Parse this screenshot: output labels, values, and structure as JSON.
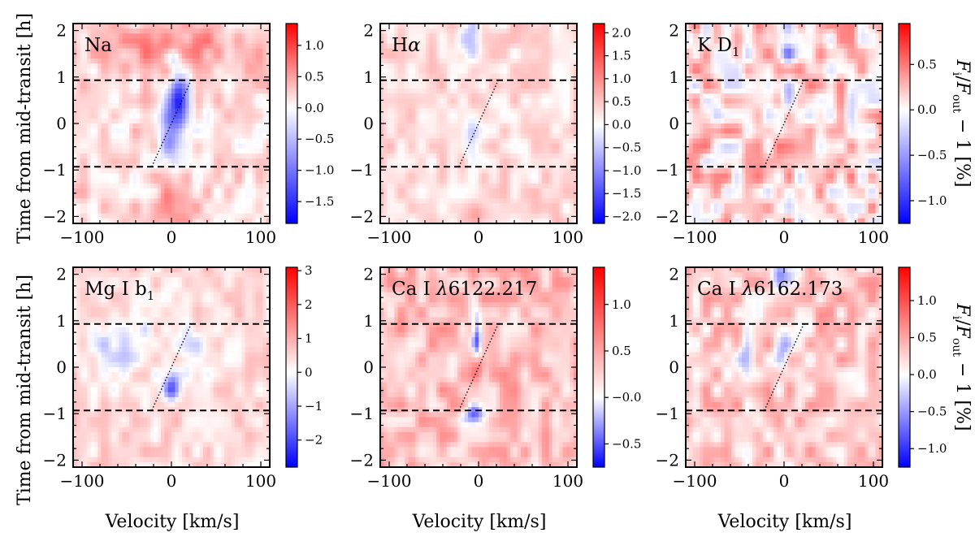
{
  "chart_data": {
    "type": "heatmap",
    "x_label": "Velocity [km/s]",
    "y_label": "Time from mid-transit [h]",
    "colorbar_label": "F_i/F_out − 1 [%]",
    "colorbar_label_parts": {
      "f_i": "F",
      "sub_i": "i",
      "slash": "/",
      "f_out": "F",
      "sub_out": "out",
      "rest": " − 1 [%]"
    },
    "x_range": [
      -110,
      110
    ],
    "y_range": [
      -2.15,
      2.15
    ],
    "x_ticks": [
      -100,
      0,
      100
    ],
    "x_tick_labels": [
      "−100",
      "0",
      "100"
    ],
    "y_ticks": [
      -2,
      -1,
      0,
      1,
      2
    ],
    "y_tick_labels": [
      "−2",
      "−1",
      "0",
      "1",
      "2"
    ],
    "transit_contacts_h": [
      -0.93,
      0.93
    ],
    "planet_trace": {
      "v_start": -22,
      "t_start": -0.93,
      "v_end": 22,
      "t_end": 0.93
    },
    "colormap": {
      "negative": "#0000ff",
      "zero": "#ffffff",
      "positive": "#ff0000"
    },
    "panels": [
      {
        "label": "Na",
        "vmin": -1.85,
        "vmax": 1.35,
        "cb_ticks": [
          1.0,
          0.5,
          0.0,
          -0.5,
          -1.0,
          -1.5
        ],
        "cb_tick_labels": [
          "1.0",
          "0.5",
          "0.0",
          "−0.5",
          "−1.0",
          "−1.5"
        ],
        "noise_seed": 11,
        "noise_amp": 0.28,
        "bias": 0.18,
        "features": [
          {
            "v": 0,
            "t": 1.6,
            "sv": 55,
            "st": 0.35,
            "a": 0.5
          },
          {
            "v": 0,
            "t": -1.8,
            "sv": 15,
            "st": 0.3,
            "a": 0.45
          },
          {
            "v": 0,
            "t": 1.4,
            "sv": 7,
            "st": 0.15,
            "a": -0.7
          },
          {
            "v": 9,
            "t": 0.7,
            "sv": 7,
            "st": 0.25,
            "a": -0.7
          },
          {
            "v": 9,
            "t": 0.25,
            "sv": 9,
            "st": 0.35,
            "a": -1.4
          },
          {
            "v": -3,
            "t": -0.3,
            "sv": 8,
            "st": 0.4,
            "a": -0.9
          }
        ]
      },
      {
        "label": "Hα",
        "label_parts": [
          "H",
          "α"
        ],
        "vmin": -2.15,
        "vmax": 2.2,
        "cb_ticks": [
          2.0,
          1.5,
          1.0,
          0.5,
          0.0,
          -0.5,
          -1.0,
          -1.5,
          -2.0
        ],
        "cb_tick_labels": [
          "2.0",
          "1.5",
          "1.0",
          "0.5",
          "0.0",
          "−0.5",
          "−1.0",
          "−1.5",
          "−2.0"
        ],
        "noise_seed": 23,
        "noise_amp": 0.35,
        "bias": 0.3,
        "features": [
          {
            "v": -10,
            "t": 1.8,
            "sv": 10,
            "st": 0.3,
            "a": -0.8
          },
          {
            "v": -8,
            "t": -0.35,
            "sv": 7,
            "st": 0.4,
            "a": -0.6
          },
          {
            "v": 0,
            "t": -2.0,
            "sv": 10,
            "st": 0.2,
            "a": 0.6
          }
        ]
      },
      {
        "label": "K D1",
        "label_parts": [
          "K D",
          "1"
        ],
        "vmin": -1.25,
        "vmax": 0.95,
        "cb_ticks": [
          0.5,
          0.0,
          -0.5,
          -1.0
        ],
        "cb_tick_labels": [
          "0.5",
          "0.0",
          "−0.5",
          "−1.0"
        ],
        "noise_seed": 37,
        "noise_amp": 0.38,
        "bias": 0.15,
        "features": [
          {
            "v": 5,
            "t": 2.0,
            "sv": 6,
            "st": 0.3,
            "a": -0.6
          },
          {
            "v": 0,
            "t": 1.5,
            "sv": 8,
            "st": 0.15,
            "a": -0.5
          },
          {
            "v": 5,
            "t": 0.55,
            "sv": 6,
            "st": 0.2,
            "a": -0.45
          }
        ]
      },
      {
        "label": "Mg I b1",
        "label_parts": [
          "Mg I b",
          "1"
        ],
        "vmin": -2.8,
        "vmax": 3.1,
        "cb_ticks": [
          3,
          2,
          1,
          0,
          -1,
          -2
        ],
        "cb_tick_labels": [
          "3",
          "2",
          "1",
          "0",
          "−1",
          "−2"
        ],
        "noise_seed": 41,
        "noise_amp": 0.5,
        "bias": 0.45,
        "features": [
          {
            "v": -55,
            "t": 0.5,
            "sv": 25,
            "st": 0.45,
            "a": -1.0
          },
          {
            "v": 0,
            "t": -0.45,
            "sv": 6,
            "st": 0.2,
            "a": -2.0
          },
          {
            "v": 30,
            "t": 0.4,
            "sv": 15,
            "st": 0.35,
            "a": -0.8
          }
        ]
      },
      {
        "label": "Ca I λ6122.217",
        "label_parts": [
          "Ca I ",
          "λ",
          "6122.217"
        ],
        "vmin": -0.75,
        "vmax": 1.4,
        "cb_ticks": [
          1.0,
          0.5,
          0.0,
          -0.5
        ],
        "cb_tick_labels": [
          "1.0",
          "0.5",
          "−0.0",
          "−0.5"
        ],
        "noise_seed": 53,
        "noise_amp": 0.3,
        "bias": 0.35,
        "features": [
          {
            "v": -2,
            "t": 0.6,
            "sv": 4,
            "st": 0.35,
            "a": -0.8
          },
          {
            "v": -5,
            "t": -1.0,
            "sv": 9,
            "st": 0.15,
            "a": -0.6
          },
          {
            "v": 0,
            "t": 0.0,
            "sv": 5,
            "st": 0.2,
            "a": 0.5
          }
        ]
      },
      {
        "label": "Ca I λ6162.173",
        "label_parts": [
          "Ca I ",
          "λ",
          "6162.173"
        ],
        "vmin": -1.25,
        "vmax": 1.45,
        "cb_ticks": [
          1.0,
          0.5,
          0.0,
          -0.5,
          -1.0
        ],
        "cb_tick_labels": [
          "1.0",
          "0.5",
          "0.0",
          "−0.5",
          "−1.0"
        ],
        "noise_seed": 67,
        "noise_amp": 0.35,
        "bias": 0.3,
        "features": [
          {
            "v": 0,
            "t": 2.0,
            "sv": 12,
            "st": 0.2,
            "a": -0.6
          },
          {
            "v": 0,
            "t": 0.4,
            "sv": 6,
            "st": 0.3,
            "a": -0.5
          },
          {
            "v": -45,
            "t": 0.2,
            "sv": 8,
            "st": 0.3,
            "a": -0.5
          }
        ]
      }
    ]
  }
}
